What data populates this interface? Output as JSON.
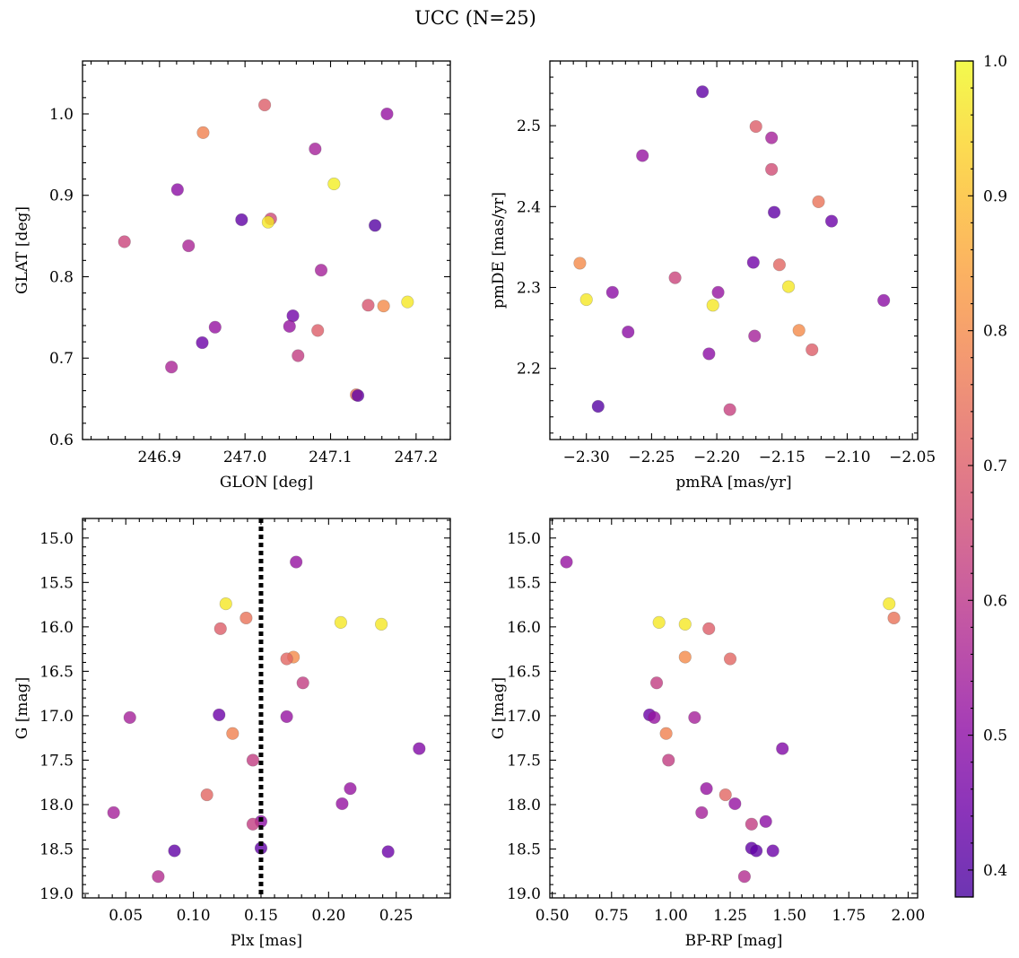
{
  "figure": {
    "title": "UCC (N=25)"
  },
  "colorbar": {
    "min": 0.38,
    "max": 1.0,
    "ticks": [
      0.4,
      0.5,
      0.6,
      0.7,
      0.8,
      0.9,
      1.0
    ],
    "tick_labels": [
      "0.4",
      "0.5",
      "0.6",
      "0.7",
      "0.8",
      "0.9",
      "1.0"
    ],
    "colormap": "plasma",
    "point_alpha": 0.8
  },
  "chart_data": [
    {
      "type": "scatter",
      "xlabel": "GLON [deg]",
      "ylabel": "GLAT [deg]",
      "xlim": [
        246.81,
        247.24
      ],
      "ylim": [
        0.6,
        1.065
      ],
      "xticks": [
        246.9,
        247.0,
        247.1,
        247.2
      ],
      "xtick_labels": [
        "246.9",
        "247.0",
        "247.1",
        "247.2"
      ],
      "yticks": [
        0.6,
        0.7,
        0.8,
        0.9,
        1.0
      ],
      "ytick_labels": [
        "0.6",
        "0.7",
        "0.8",
        "0.9",
        "1.0"
      ],
      "points": [
        {
          "x": 247.023,
          "y": 1.011,
          "c": 0.7
        },
        {
          "x": 246.951,
          "y": 0.977,
          "c": 0.78
        },
        {
          "x": 247.166,
          "y": 1.0,
          "c": 0.52
        },
        {
          "x": 247.082,
          "y": 0.957,
          "c": 0.55
        },
        {
          "x": 246.921,
          "y": 0.907,
          "c": 0.5
        },
        {
          "x": 247.104,
          "y": 0.914,
          "c": 0.98
        },
        {
          "x": 246.996,
          "y": 0.87,
          "c": 0.42
        },
        {
          "x": 247.03,
          "y": 0.871,
          "c": 0.65
        },
        {
          "x": 247.027,
          "y": 0.867,
          "c": 0.97
        },
        {
          "x": 247.152,
          "y": 0.863,
          "c": 0.4
        },
        {
          "x": 246.859,
          "y": 0.843,
          "c": 0.64
        },
        {
          "x": 246.934,
          "y": 0.838,
          "c": 0.56
        },
        {
          "x": 247.089,
          "y": 0.808,
          "c": 0.55
        },
        {
          "x": 247.144,
          "y": 0.765,
          "c": 0.68
        },
        {
          "x": 247.162,
          "y": 0.764,
          "c": 0.8
        },
        {
          "x": 247.19,
          "y": 0.769,
          "c": 0.97
        },
        {
          "x": 247.056,
          "y": 0.752,
          "c": 0.45
        },
        {
          "x": 247.052,
          "y": 0.739,
          "c": 0.52
        },
        {
          "x": 246.965,
          "y": 0.738,
          "c": 0.52
        },
        {
          "x": 247.085,
          "y": 0.734,
          "c": 0.7
        },
        {
          "x": 246.95,
          "y": 0.719,
          "c": 0.44
        },
        {
          "x": 247.062,
          "y": 0.703,
          "c": 0.62
        },
        {
          "x": 246.914,
          "y": 0.689,
          "c": 0.56
        },
        {
          "x": 247.13,
          "y": 0.655,
          "c": 0.75
        },
        {
          "x": 247.132,
          "y": 0.654,
          "c": 0.42
        }
      ]
    },
    {
      "type": "scatter",
      "xlabel": "pmRA [mas/yr]",
      "ylabel": "pmDE [mas/yr]",
      "xlim": [
        -2.328,
        -2.046
      ],
      "ylim": [
        2.112,
        2.58
      ],
      "xticks": [
        -2.3,
        -2.25,
        -2.2,
        -2.15,
        -2.1,
        -2.05
      ],
      "xtick_labels": [
        "−2.30",
        "−2.25",
        "−2.20",
        "−2.15",
        "−2.10",
        "−2.05"
      ],
      "yticks": [
        2.2,
        2.3,
        2.4,
        2.5
      ],
      "ytick_labels": [
        "2.2",
        "2.3",
        "2.4",
        "2.5"
      ],
      "points": [
        {
          "x": -2.211,
          "y": 2.542,
          "c": 0.42
        },
        {
          "x": -2.17,
          "y": 2.499,
          "c": 0.7
        },
        {
          "x": -2.158,
          "y": 2.485,
          "c": 0.55
        },
        {
          "x": -2.257,
          "y": 2.463,
          "c": 0.52
        },
        {
          "x": -2.158,
          "y": 2.446,
          "c": 0.66
        },
        {
          "x": -2.122,
          "y": 2.406,
          "c": 0.75
        },
        {
          "x": -2.156,
          "y": 2.393,
          "c": 0.42
        },
        {
          "x": -2.112,
          "y": 2.382,
          "c": 0.44
        },
        {
          "x": -2.305,
          "y": 2.33,
          "c": 0.8
        },
        {
          "x": -2.172,
          "y": 2.331,
          "c": 0.45
        },
        {
          "x": -2.152,
          "y": 2.328,
          "c": 0.72
        },
        {
          "x": -2.232,
          "y": 2.312,
          "c": 0.64
        },
        {
          "x": -2.145,
          "y": 2.301,
          "c": 0.97
        },
        {
          "x": -2.28,
          "y": 2.294,
          "c": 0.5
        },
        {
          "x": -2.199,
          "y": 2.294,
          "c": 0.52
        },
        {
          "x": -2.3,
          "y": 2.285,
          "c": 0.97
        },
        {
          "x": -2.072,
          "y": 2.284,
          "c": 0.5
        },
        {
          "x": -2.203,
          "y": 2.278,
          "c": 0.97
        },
        {
          "x": -2.137,
          "y": 2.247,
          "c": 0.8
        },
        {
          "x": -2.268,
          "y": 2.245,
          "c": 0.5
        },
        {
          "x": -2.171,
          "y": 2.24,
          "c": 0.55
        },
        {
          "x": -2.127,
          "y": 2.223,
          "c": 0.7
        },
        {
          "x": -2.206,
          "y": 2.218,
          "c": 0.5
        },
        {
          "x": -2.291,
          "y": 2.153,
          "c": 0.4
        },
        {
          "x": -2.19,
          "y": 2.149,
          "c": 0.63
        }
      ]
    },
    {
      "type": "scatter",
      "xlabel": "Plx [mas]",
      "ylabel": "G [mag]",
      "xlim": [
        0.018,
        0.29
      ],
      "ylim": [
        19.05,
        14.78
      ],
      "y_inverted": true,
      "vline": 0.15,
      "xticks": [
        0.05,
        0.1,
        0.15,
        0.2,
        0.25
      ],
      "xtick_labels": [
        "0.05",
        "0.10",
        "0.15",
        "0.20",
        "0.25"
      ],
      "yticks": [
        15.0,
        15.5,
        16.0,
        16.5,
        17.0,
        17.5,
        18.0,
        18.5,
        19.0
      ],
      "ytick_labels": [
        "15.0",
        "15.5",
        "16.0",
        "16.5",
        "17.0",
        "17.5",
        "18.0",
        "18.5",
        "19.0"
      ],
      "points": [
        {
          "x": 0.176,
          "y": 15.27,
          "c": 0.52
        },
        {
          "x": 0.124,
          "y": 15.74,
          "c": 0.97
        },
        {
          "x": 0.139,
          "y": 15.9,
          "c": 0.75
        },
        {
          "x": 0.209,
          "y": 15.95,
          "c": 0.97
        },
        {
          "x": 0.239,
          "y": 15.97,
          "c": 0.97
        },
        {
          "x": 0.12,
          "y": 16.02,
          "c": 0.7
        },
        {
          "x": 0.174,
          "y": 16.34,
          "c": 0.8
        },
        {
          "x": 0.169,
          "y": 16.36,
          "c": 0.72
        },
        {
          "x": 0.181,
          "y": 16.63,
          "c": 0.62
        },
        {
          "x": 0.053,
          "y": 17.02,
          "c": 0.55
        },
        {
          "x": 0.119,
          "y": 16.99,
          "c": 0.44
        },
        {
          "x": 0.169,
          "y": 17.01,
          "c": 0.52
        },
        {
          "x": 0.129,
          "y": 17.2,
          "c": 0.78
        },
        {
          "x": 0.267,
          "y": 17.37,
          "c": 0.48
        },
        {
          "x": 0.144,
          "y": 17.5,
          "c": 0.62
        },
        {
          "x": 0.216,
          "y": 17.82,
          "c": 0.52
        },
        {
          "x": 0.11,
          "y": 17.89,
          "c": 0.72
        },
        {
          "x": 0.21,
          "y": 17.99,
          "c": 0.52
        },
        {
          "x": 0.041,
          "y": 18.09,
          "c": 0.55
        },
        {
          "x": 0.15,
          "y": 18.19,
          "c": 0.5
        },
        {
          "x": 0.144,
          "y": 18.22,
          "c": 0.62
        },
        {
          "x": 0.15,
          "y": 18.49,
          "c": 0.42
        },
        {
          "x": 0.086,
          "y": 18.52,
          "c": 0.42
        },
        {
          "x": 0.244,
          "y": 18.53,
          "c": 0.44
        },
        {
          "x": 0.074,
          "y": 18.81,
          "c": 0.58
        }
      ]
    },
    {
      "type": "scatter",
      "xlabel": "BP-RP [mag]",
      "ylabel": "G [mag]",
      "xlim": [
        0.49,
        2.04
      ],
      "ylim": [
        19.05,
        14.78
      ],
      "y_inverted": true,
      "xticks": [
        0.5,
        0.75,
        1.0,
        1.25,
        1.5,
        1.75,
        2.0
      ],
      "xtick_labels": [
        "0.50",
        "0.75",
        "1.00",
        "1.25",
        "1.50",
        "1.75",
        "2.00"
      ],
      "yticks": [
        15.0,
        15.5,
        16.0,
        16.5,
        17.0,
        17.5,
        18.0,
        18.5,
        19.0
      ],
      "ytick_labels": [
        "15.0",
        "15.5",
        "16.0",
        "16.5",
        "17.0",
        "17.5",
        "18.0",
        "18.5",
        "19.0"
      ],
      "points": [
        {
          "x": 0.56,
          "y": 15.27,
          "c": 0.52
        },
        {
          "x": 1.92,
          "y": 15.74,
          "c": 0.97
        },
        {
          "x": 1.94,
          "y": 15.9,
          "c": 0.75
        },
        {
          "x": 0.95,
          "y": 15.95,
          "c": 0.97
        },
        {
          "x": 1.06,
          "y": 15.97,
          "c": 0.97
        },
        {
          "x": 1.16,
          "y": 16.02,
          "c": 0.7
        },
        {
          "x": 1.06,
          "y": 16.34,
          "c": 0.8
        },
        {
          "x": 1.25,
          "y": 16.36,
          "c": 0.72
        },
        {
          "x": 0.94,
          "y": 16.63,
          "c": 0.62
        },
        {
          "x": 0.91,
          "y": 16.99,
          "c": 0.44
        },
        {
          "x": 0.93,
          "y": 17.02,
          "c": 0.52
        },
        {
          "x": 1.1,
          "y": 17.02,
          "c": 0.55
        },
        {
          "x": 0.98,
          "y": 17.2,
          "c": 0.78
        },
        {
          "x": 1.47,
          "y": 17.37,
          "c": 0.48
        },
        {
          "x": 0.99,
          "y": 17.5,
          "c": 0.62
        },
        {
          "x": 1.15,
          "y": 17.82,
          "c": 0.52
        },
        {
          "x": 1.23,
          "y": 17.89,
          "c": 0.72
        },
        {
          "x": 1.27,
          "y": 17.99,
          "c": 0.52
        },
        {
          "x": 1.13,
          "y": 18.09,
          "c": 0.55
        },
        {
          "x": 1.4,
          "y": 18.19,
          "c": 0.5
        },
        {
          "x": 1.34,
          "y": 18.22,
          "c": 0.62
        },
        {
          "x": 1.34,
          "y": 18.49,
          "c": 0.42
        },
        {
          "x": 1.36,
          "y": 18.52,
          "c": 0.42
        },
        {
          "x": 1.43,
          "y": 18.52,
          "c": 0.44
        },
        {
          "x": 1.31,
          "y": 18.81,
          "c": 0.58
        }
      ]
    }
  ]
}
